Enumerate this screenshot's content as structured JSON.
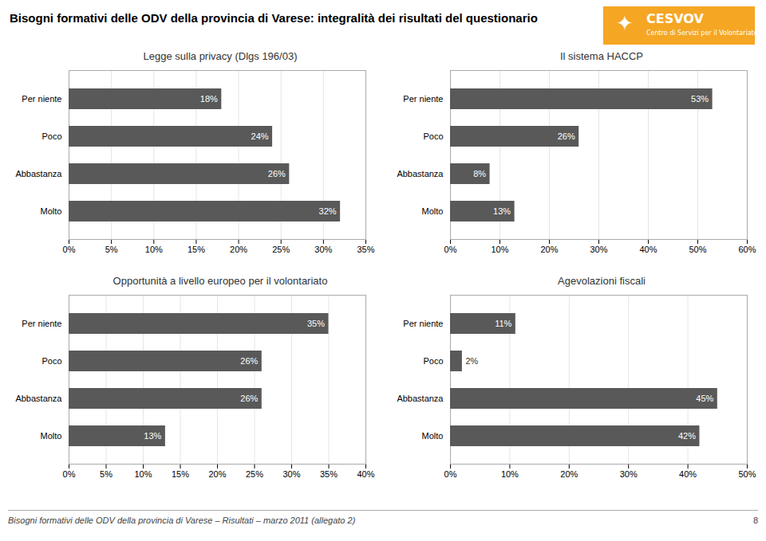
{
  "title": "Bisogni formativi delle ODV della provincia di Varese: integralità dei risultati del questionario",
  "annotations": [
    "✦",
    "CESVOV",
    "Centro di Servizi per il Volontariato",
    "Bisogni formativi delle ODV della provincia di Varese – Risultati – marzo 2011 (allegato 2)",
    "8"
  ],
  "chart_data": [
    {
      "type": "bar",
      "orientation": "horizontal",
      "title": "Legge sulla privacy (Dlgs 196/03)",
      "categories": [
        "Per niente",
        "Poco",
        "Abbastanza",
        "Molto"
      ],
      "values": [
        18,
        24,
        26,
        32
      ],
      "value_labels": [
        "18%",
        "24%",
        "26%",
        "32%"
      ],
      "data_labels": true,
      "color": "#595959",
      "grid": true,
      "xlim": [
        0,
        35
      ],
      "xticks": [
        {
          "value": 0,
          "label": "0%"
        },
        {
          "value": 5,
          "label": "5%"
        },
        {
          "value": 10,
          "label": "10%"
        },
        {
          "value": 15,
          "label": "15%"
        },
        {
          "value": 20,
          "label": "20%"
        },
        {
          "value": 25,
          "label": "25%"
        },
        {
          "value": 30,
          "label": "30%"
        },
        {
          "value": 35,
          "label": "35%"
        }
      ]
    },
    {
      "type": "bar",
      "orientation": "horizontal",
      "title": "Il sistema HACCP",
      "categories": [
        "Per niente",
        "Poco",
        "Abbastanza",
        "Molto"
      ],
      "values": [
        53,
        26,
        8,
        13
      ],
      "value_labels": [
        "53%",
        "26%",
        "8%",
        "13%"
      ],
      "data_labels": true,
      "color": "#595959",
      "grid": true,
      "xlim": [
        0,
        60
      ],
      "xticks": [
        {
          "value": 0,
          "label": "0%"
        },
        {
          "value": 10,
          "label": "10%"
        },
        {
          "value": 20,
          "label": "20%"
        },
        {
          "value": 30,
          "label": "30%"
        },
        {
          "value": 40,
          "label": "40%"
        },
        {
          "value": 50,
          "label": "50%"
        },
        {
          "value": 60,
          "label": "60%"
        }
      ]
    },
    {
      "type": "bar",
      "orientation": "horizontal",
      "title": "Opportunità a livello europeo per il volontariato",
      "categories": [
        "Per niente",
        "Poco",
        "Abbastanza",
        "Molto"
      ],
      "values": [
        35,
        26,
        26,
        13
      ],
      "value_labels": [
        "35%",
        "26%",
        "26%",
        "13%"
      ],
      "data_labels": true,
      "color": "#595959",
      "grid": true,
      "xlim": [
        0,
        40
      ],
      "xticks": [
        {
          "value": 0,
          "label": "0%"
        },
        {
          "value": 5,
          "label": "5%"
        },
        {
          "value": 10,
          "label": "10%"
        },
        {
          "value": 15,
          "label": "15%"
        },
        {
          "value": 20,
          "label": "20%"
        },
        {
          "value": 25,
          "label": "25%"
        },
        {
          "value": 30,
          "label": "30%"
        },
        {
          "value": 35,
          "label": "35%"
        },
        {
          "value": 40,
          "label": "40%"
        }
      ]
    },
    {
      "type": "bar",
      "orientation": "horizontal",
      "title": "Agevolazioni fiscali",
      "categories": [
        "Per niente",
        "Poco",
        "Abbastanza",
        "Molto"
      ],
      "values": [
        11,
        2,
        45,
        42
      ],
      "value_labels": [
        "11%",
        "2%",
        "45%",
        "42%"
      ],
      "data_labels": true,
      "color": "#595959",
      "grid": true,
      "xlim": [
        0,
        50
      ],
      "xticks": [
        {
          "value": 0,
          "label": "0%"
        },
        {
          "value": 10,
          "label": "10%"
        },
        {
          "value": 20,
          "label": "20%"
        },
        {
          "value": 30,
          "label": "30%"
        },
        {
          "value": 40,
          "label": "40%"
        },
        {
          "value": 50,
          "label": "50%"
        }
      ]
    }
  ]
}
